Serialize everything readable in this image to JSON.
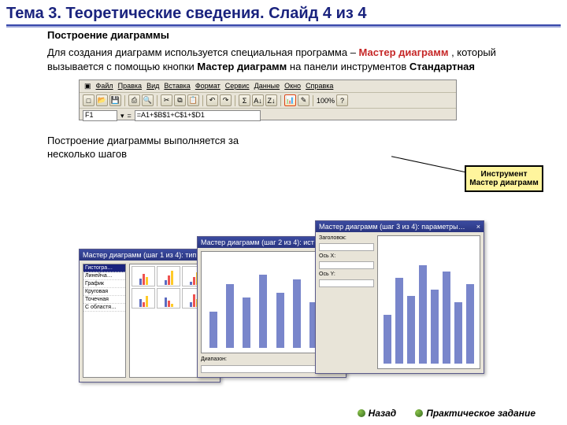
{
  "title": "Тема 3. Теоретические сведения. Слайд 4 из 4",
  "heading": "Построение диаграммы",
  "para_pre": "Для создания диаграмм используется специальная программа – ",
  "para_hl": "Мастер диаграмм",
  "para_mid": ", который вызывается с помощью кнопки ",
  "para_bold": "Мастер диаграмм",
  "para_mid2": " на панели инструментов ",
  "para_bold2": "Стандартная",
  "menu": [
    "Файл",
    "Правка",
    "Вид",
    "Вставка",
    "Формат",
    "Сервис",
    "Данные",
    "Окно",
    "Справка"
  ],
  "cell_ref": "F1",
  "formula": "=A1+$B$1+C$1+$D1",
  "zoom": "100%",
  "callout": "Инструмент Мастер диаграмм",
  "subtext": "Построение диаграммы выполняется за несколько шагов",
  "wiz1_title": "Мастер диаграмм (шаг 1 из 4): тип…",
  "wiz2_title": "Мастер диаграмм (шаг 2 из 4): ист…",
  "wiz3_title": "Мастер диаграмм (шаг 3 из 4): параметры…",
  "chart_types": [
    "Гистогра…",
    "Линейча…",
    "График",
    "Круговая",
    "Точечная",
    "С областя…"
  ],
  "mini": {
    "colors": [
      "#5c6bc0",
      "#ef5350",
      "#ffca28"
    ],
    "sets": [
      [
        8,
        14,
        10
      ],
      [
        6,
        12,
        18
      ],
      [
        4,
        10,
        16
      ],
      [
        10,
        6,
        14
      ],
      [
        12,
        8,
        4
      ],
      [
        6,
        16,
        10
      ]
    ]
  },
  "big_bars": [
    40,
    70,
    55,
    80,
    60,
    75,
    50,
    65
  ],
  "bar_color": "#7986cb",
  "nav_back": "Назад",
  "nav_task": "Практическое задание"
}
